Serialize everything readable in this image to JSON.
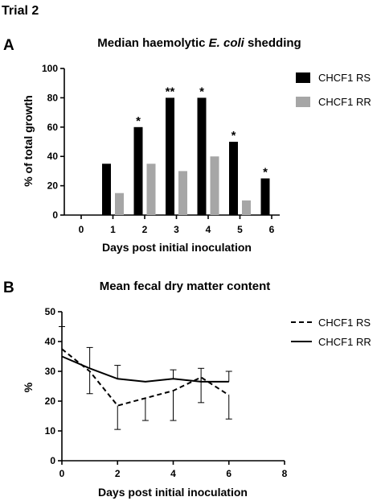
{
  "figure": {
    "title": "Trial 2"
  },
  "chart_data": [
    {
      "type": "bar",
      "panel_label": "A",
      "title_prefix": "Median haemolytic ",
      "title_italic": "E. coli",
      "title_suffix": " shedding",
      "xlabel": "Days post initial inoculation",
      "ylabel": "% of total growth",
      "categories": [
        "0",
        "1",
        "2",
        "3",
        "4",
        "5",
        "6"
      ],
      "ylim": [
        0,
        100
      ],
      "yticks": [
        0,
        20,
        40,
        60,
        80,
        100
      ],
      "legend_position": "right",
      "series": [
        {
          "name": "CHCF1 RS",
          "color": "#000000",
          "values": [
            0,
            35,
            60,
            80,
            80,
            50,
            25
          ]
        },
        {
          "name": "CHCF1 RR",
          "color": "#a6a6a6",
          "values": [
            0,
            15,
            35,
            30,
            40,
            10,
            null
          ]
        }
      ],
      "annotations": [
        {
          "category": "2",
          "text": "*"
        },
        {
          "category": "3",
          "text": "**"
        },
        {
          "category": "4",
          "text": "*"
        },
        {
          "category": "5",
          "text": "*"
        },
        {
          "category": "6",
          "text": "*"
        }
      ]
    },
    {
      "type": "line",
      "panel_label": "B",
      "title": "Mean fecal dry matter content",
      "xlabel": "Days post initial inoculation",
      "ylabel": "%",
      "xlim": [
        0,
        8
      ],
      "ylim": [
        0,
        50
      ],
      "xticks": [
        0,
        2,
        4,
        6,
        8
      ],
      "yticks": [
        0,
        10,
        20,
        30,
        40,
        50
      ],
      "legend_position": "right",
      "series": [
        {
          "name": "CHCF1 RS",
          "dash": "dashed",
          "x": [
            0,
            1,
            2,
            3,
            4,
            5,
            6
          ],
          "y": [
            37.5,
            30,
            18.5,
            21,
            23.5,
            28,
            22
          ],
          "err": [
            0,
            7.5,
            8,
            7.5,
            10,
            8.5,
            8
          ]
        },
        {
          "name": "CHCF1 RR",
          "dash": "solid",
          "x": [
            0,
            1,
            2,
            3,
            4,
            5,
            6
          ],
          "y": [
            35,
            31,
            27.5,
            26.5,
            27.5,
            26.5,
            26.5
          ],
          "err": [
            10,
            7,
            4.5,
            0,
            3,
            4.5,
            3.5
          ]
        }
      ]
    }
  ]
}
